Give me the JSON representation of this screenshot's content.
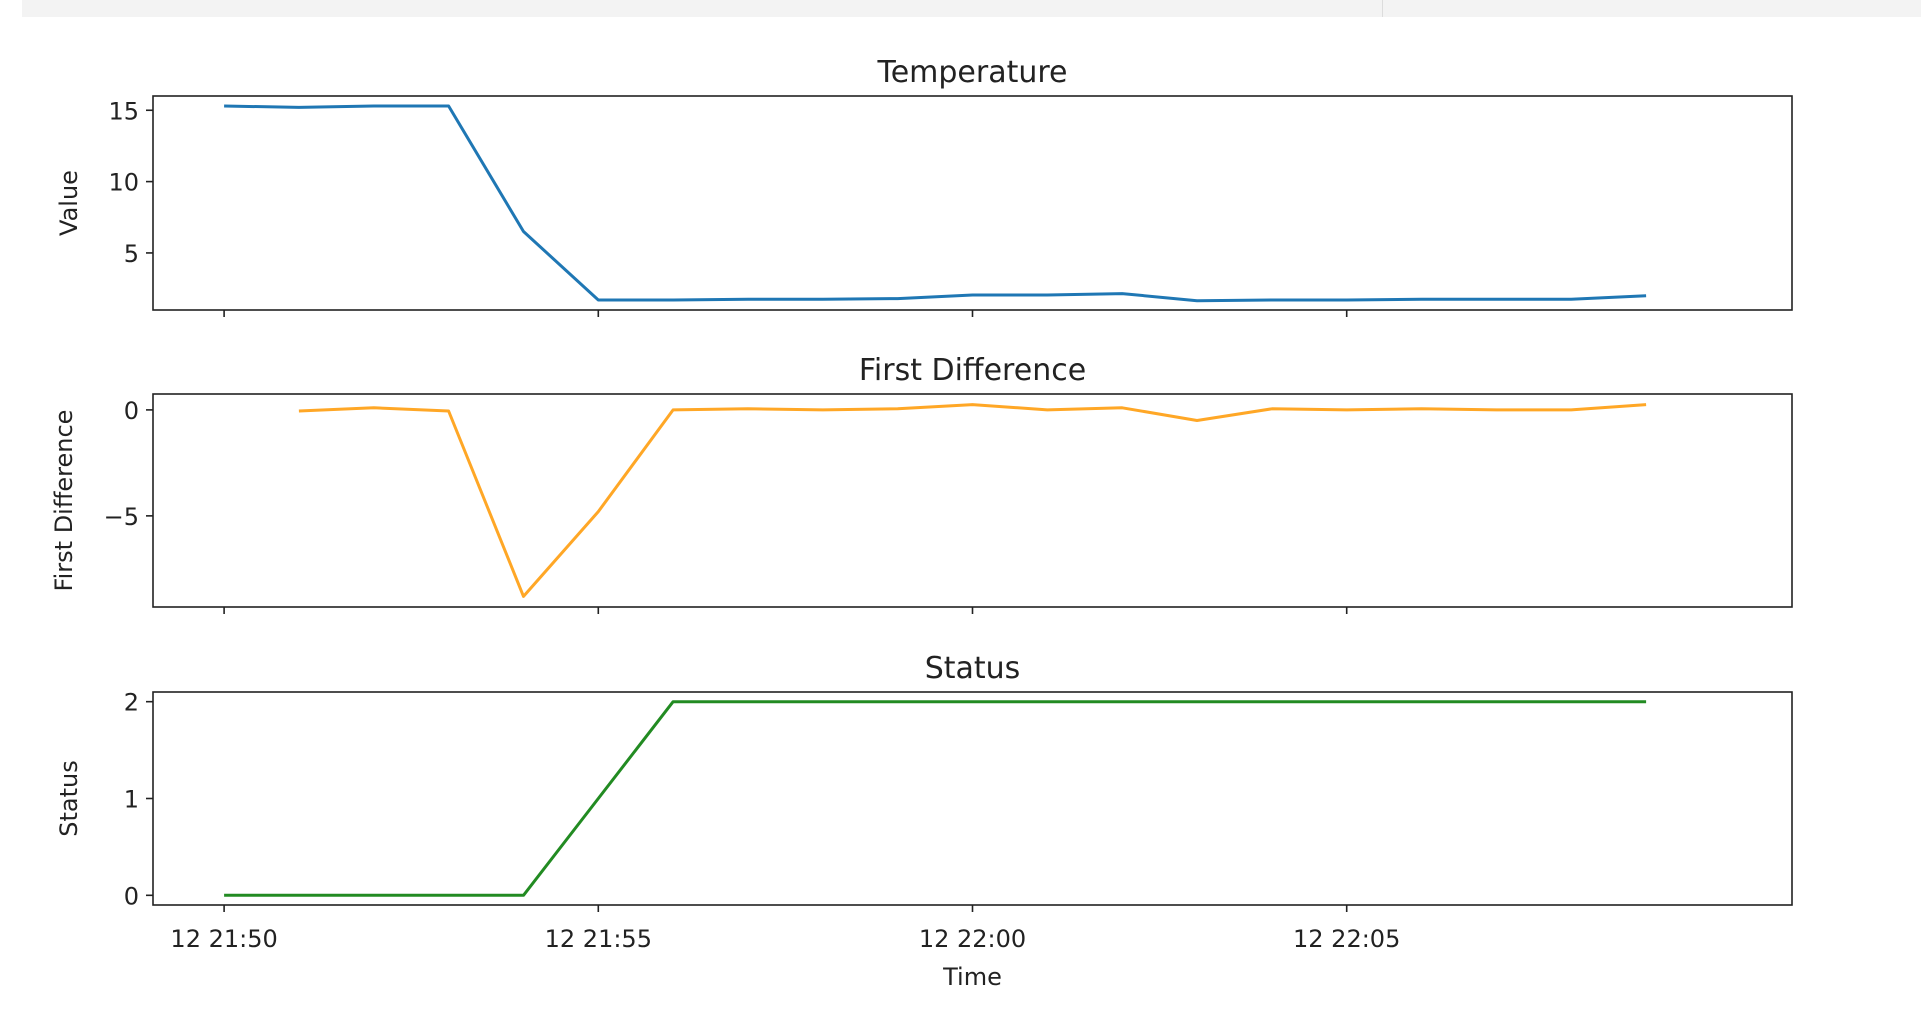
{
  "chart_data": [
    {
      "type": "line",
      "title": "Temperature",
      "xlabel": "",
      "ylabel": "Value",
      "x": [
        "21:50",
        "21:51",
        "21:52",
        "21:53",
        "21:54",
        "21:55",
        "21:56",
        "21:57",
        "21:58",
        "21:59",
        "22:00",
        "22:01",
        "22:02",
        "22:03",
        "22:04",
        "22:05",
        "22:06",
        "22:07",
        "22:08",
        "22:09"
      ],
      "values": [
        15.3,
        15.2,
        15.3,
        15.3,
        6.5,
        1.7,
        1.7,
        1.75,
        1.75,
        1.8,
        2.05,
        2.05,
        2.15,
        1.65,
        1.7,
        1.7,
        1.75,
        1.75,
        1.75,
        2.0
      ],
      "ylim": [
        1.0,
        16.0
      ],
      "yticks": [
        "5",
        "10",
        "15"
      ],
      "ytick_values": [
        5,
        10,
        15
      ],
      "color": "#1f77b4",
      "show_xticklabels": false
    },
    {
      "type": "line",
      "title": "First Difference",
      "xlabel": "",
      "ylabel": "First Difference",
      "x": [
        "21:50",
        "21:51",
        "21:52",
        "21:53",
        "21:54",
        "21:55",
        "21:56",
        "21:57",
        "21:58",
        "21:59",
        "22:00",
        "22:01",
        "22:02",
        "22:03",
        "22:04",
        "22:05",
        "22:06",
        "22:07",
        "22:08",
        "22:09"
      ],
      "values": [
        null,
        -0.05,
        0.1,
        -0.05,
        -8.8,
        -4.8,
        0.0,
        0.05,
        0.0,
        0.05,
        0.25,
        0.0,
        0.1,
        -0.5,
        0.05,
        0.0,
        0.05,
        0.0,
        0.0,
        0.25
      ],
      "ylim": [
        -9.3,
        0.75
      ],
      "yticks": [
        "−5",
        "0"
      ],
      "ytick_values": [
        -5,
        0
      ],
      "color": "#ffa726",
      "show_xticklabels": false
    },
    {
      "type": "line",
      "title": "Status",
      "xlabel": "Time",
      "ylabel": "Status",
      "x": [
        "21:50",
        "21:51",
        "21:52",
        "21:53",
        "21:54",
        "21:55",
        "21:56",
        "21:57",
        "21:58",
        "21:59",
        "22:00",
        "22:01",
        "22:02",
        "22:03",
        "22:04",
        "22:05",
        "22:06",
        "22:07",
        "22:08",
        "22:09"
      ],
      "values": [
        0,
        0,
        0,
        0,
        0,
        1,
        2,
        2,
        2,
        2,
        2,
        2,
        2,
        2,
        2,
        2,
        2,
        2,
        2,
        2
      ],
      "ylim": [
        -0.1,
        2.1
      ],
      "yticks": [
        "0",
        "1",
        "2"
      ],
      "ytick_values": [
        0,
        1,
        2
      ],
      "color": "#228b22",
      "show_xticklabels": true
    }
  ],
  "x_axis": {
    "ticks": [
      "12 21:50",
      "12 21:55",
      "12 22:00",
      "12 22:05"
    ],
    "tick_indices": [
      0,
      5,
      10,
      15
    ],
    "xlim_index": [
      -0.95,
      20.95
    ]
  }
}
